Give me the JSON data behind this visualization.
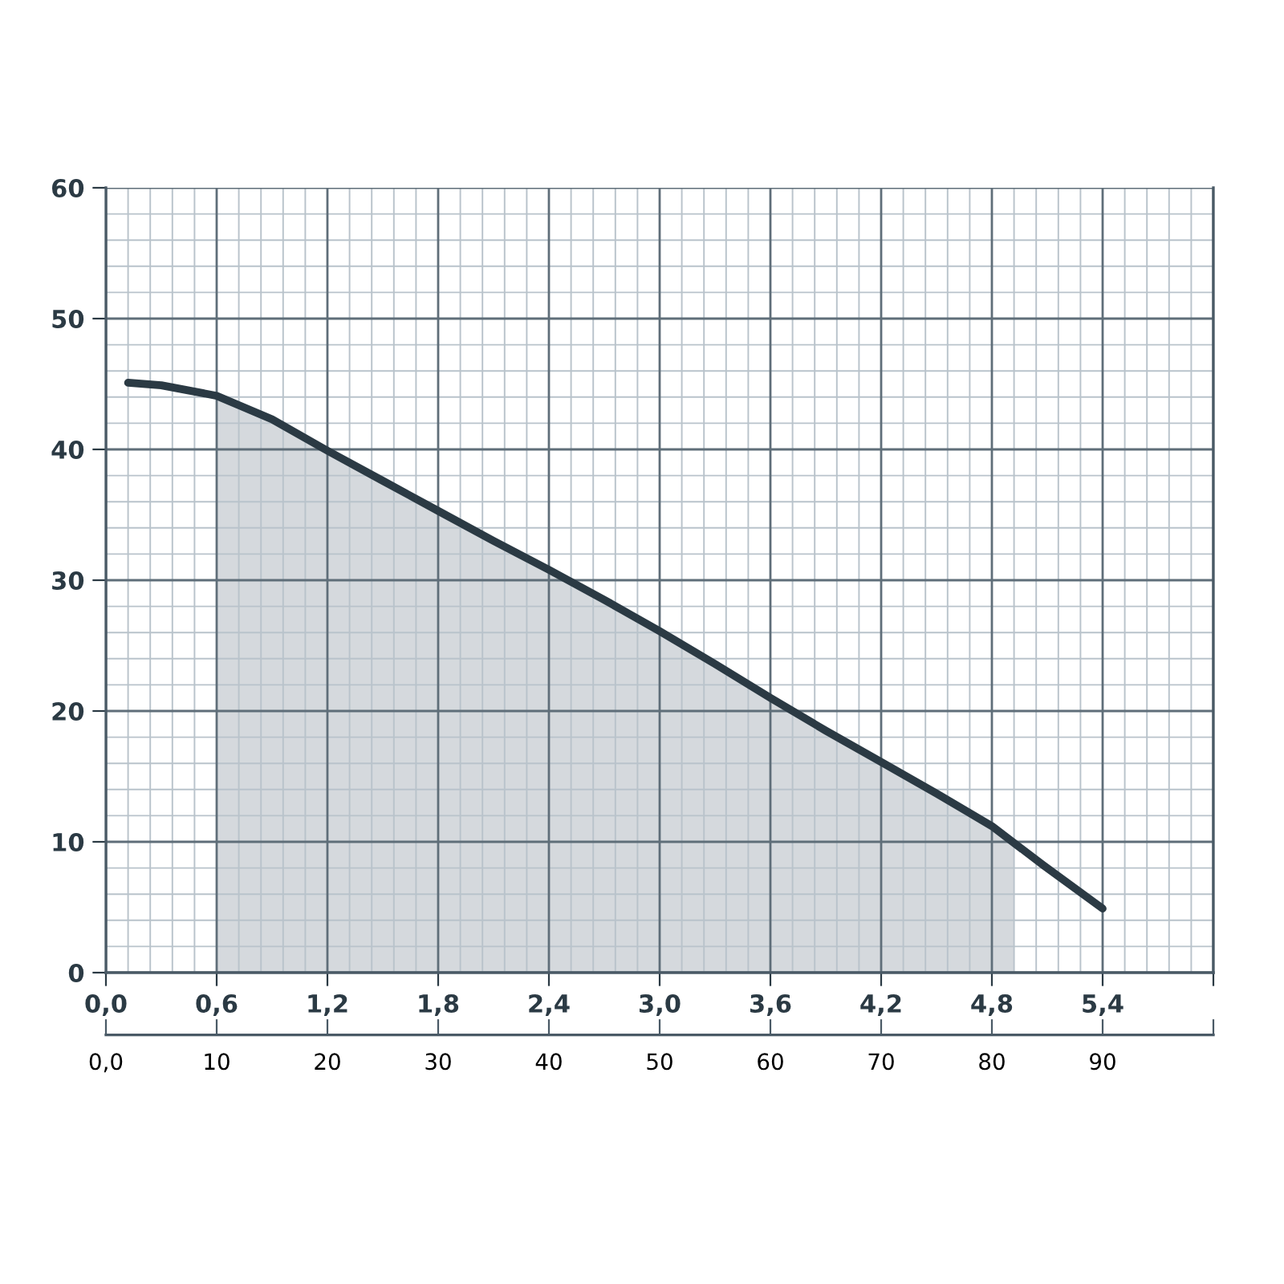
{
  "chart_data": {
    "type": "line",
    "x": [
      0.12,
      0.3,
      0.6,
      0.9,
      1.2,
      1.5,
      1.8,
      2.1,
      2.4,
      2.7,
      3.0,
      3.3,
      3.6,
      3.9,
      4.2,
      4.5,
      4.8,
      5.08,
      5.4
    ],
    "series": [
      {
        "type": "area",
        "color": "#d5d9dd",
        "x": [
          0.6,
          0.9,
          1.2,
          1.5,
          1.8,
          2.1,
          2.4,
          2.7,
          3.0,
          3.3,
          3.6,
          3.9,
          4.2,
          4.5,
          4.8,
          4.92
        ],
        "values": [
          44.1,
          42.3,
          39.9,
          37.6,
          35.3,
          33.0,
          30.8,
          28.5,
          26.1,
          23.6,
          21.0,
          18.5,
          16.1,
          13.7,
          11.2,
          10.0
        ]
      },
      {
        "color": "#2b3a44",
        "values": [
          45.1,
          44.9,
          44.1,
          42.3,
          39.9,
          37.6,
          35.3,
          33.0,
          30.8,
          28.5,
          26.1,
          23.6,
          21.0,
          18.5,
          16.1,
          13.7,
          11.2,
          8.2,
          4.9
        ]
      }
    ],
    "xlim": [
      0,
      6.0
    ],
    "ylim": [
      0,
      60
    ],
    "xticks": [
      {
        "value": 0,
        "label": "0,0"
      },
      {
        "value": 0.6,
        "label": "0,6"
      },
      {
        "value": 1.2,
        "label": "1,2"
      },
      {
        "value": 1.8,
        "label": "1,8"
      },
      {
        "value": 2.4,
        "label": "2,4"
      },
      {
        "value": 3.0,
        "label": "3,0"
      },
      {
        "value": 3.6,
        "label": "3,6"
      },
      {
        "value": 4.2,
        "label": "4,2"
      },
      {
        "value": 4.8,
        "label": "4,8"
      },
      {
        "value": 5.4,
        "label": "5,4"
      },
      {
        "value": 6.0,
        "label": null
      }
    ],
    "yticks": [
      0,
      10,
      20,
      30,
      40,
      50,
      60
    ],
    "x2lim": [
      0,
      100
    ],
    "x2ticks": [
      {
        "value": 0,
        "label": "0,0"
      },
      10,
      20,
      30,
      40,
      50,
      60,
      70,
      80,
      90,
      {
        "value": 100,
        "label": null
      }
    ],
    "grid": true,
    "marker": "none",
    "line_style": "solid"
  }
}
